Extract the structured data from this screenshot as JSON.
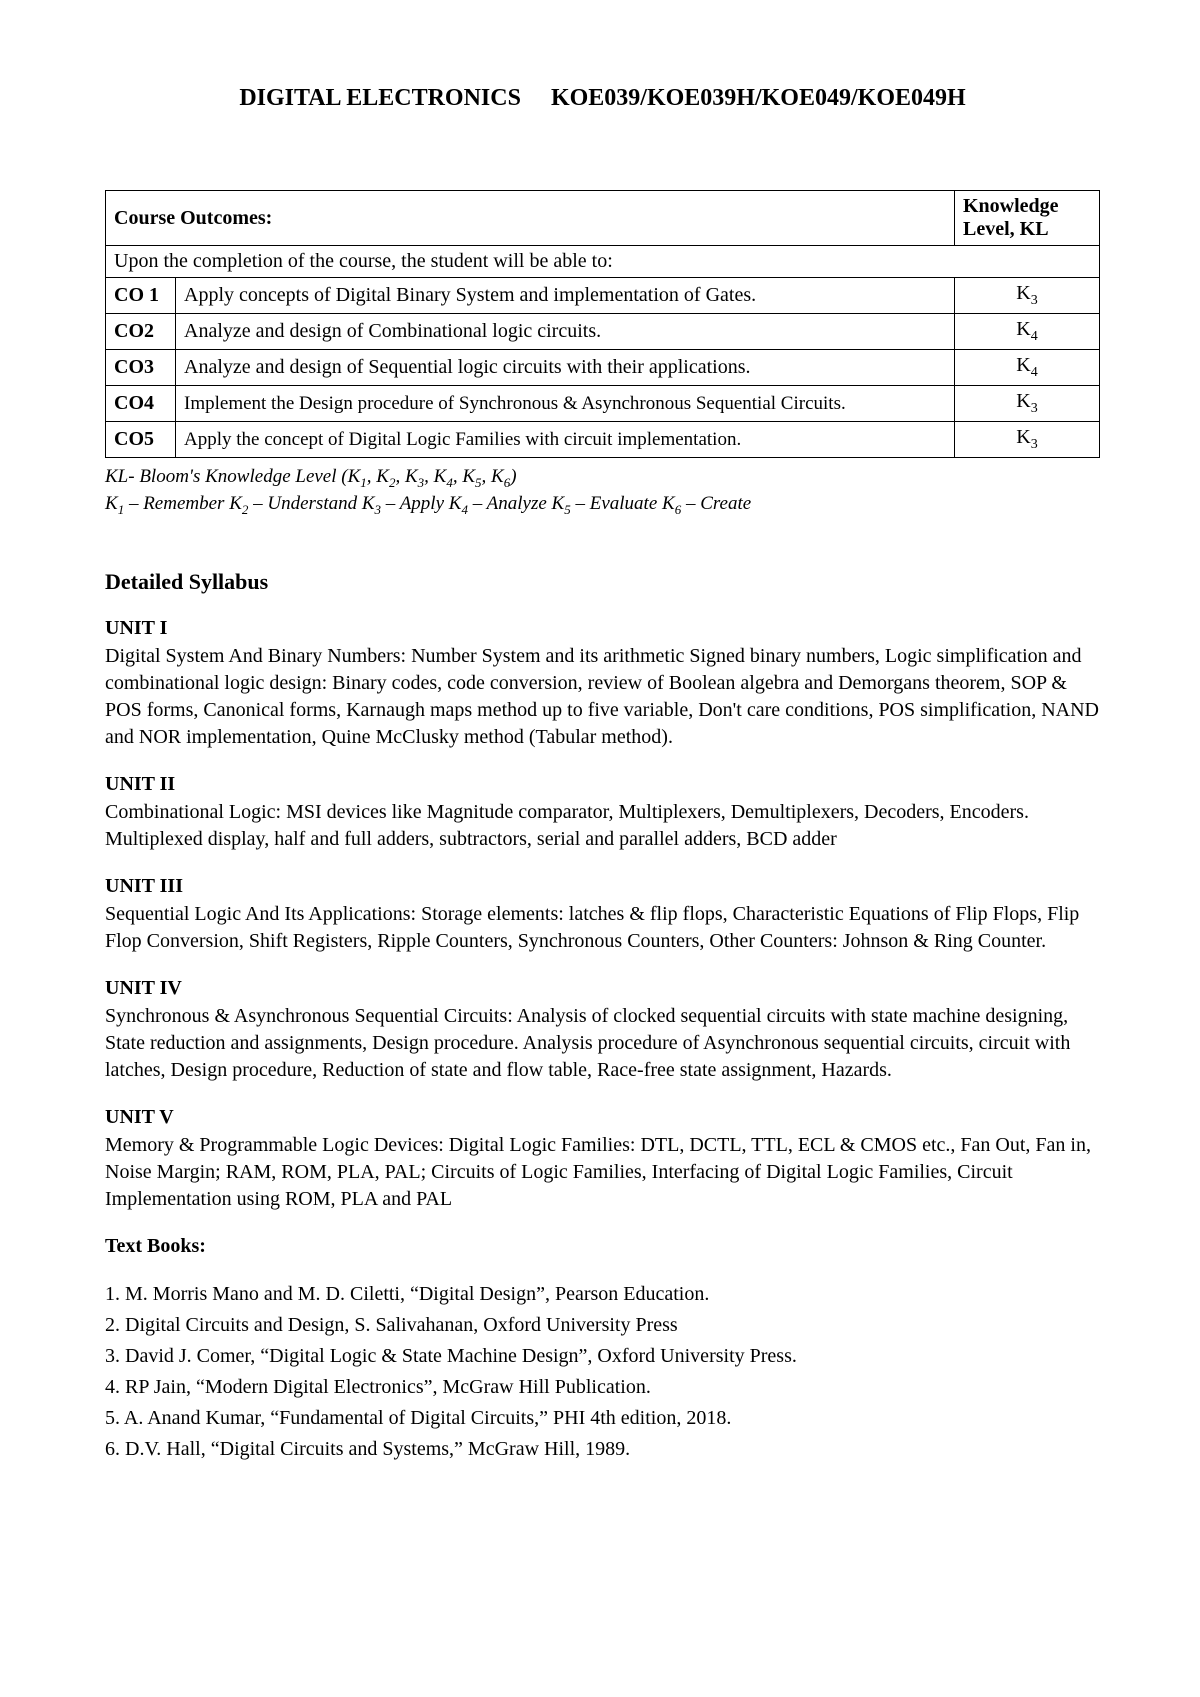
{
  "title": "DIGITAL ELECTRONICS  KOE039/KOE039H/KOE049/KOE049H",
  "table": {
    "header_left": "Course Outcomes:",
    "header_right": "Knowledge Level, KL",
    "intro": "Upon the completion of the course, the student will be able to:",
    "rows": [
      {
        "co": "CO 1",
        "desc": "Apply concepts of Digital Binary System and implementation of Gates.",
        "kl_base": "K",
        "kl_sub": "3",
        "small": false
      },
      {
        "co": "CO2",
        "desc": "Analyze and design of Combinational logic circuits.",
        "kl_base": "K",
        "kl_sub": "4",
        "small": false
      },
      {
        "co": "CO3",
        "desc": "Analyze and design of Sequential logic circuits with their applications.",
        "kl_base": "K",
        "kl_sub": "4",
        "small": false
      },
      {
        "co": "CO4",
        "desc": "Implement the Design procedure of Synchronous & Asynchronous Sequential Circuits.",
        "kl_base": "K",
        "kl_sub": "3",
        "small": true
      },
      {
        "co": "CO5",
        "desc": "Apply the concept of Digital Logic Families with circuit implementation.",
        "kl_base": "K",
        "kl_sub": "3",
        "small": true
      }
    ]
  },
  "notes": {
    "line1_prefix": "KL- Bloom's Knowledge Level (K",
    "line1_subs": [
      "1",
      "2",
      "3",
      "4",
      "5",
      "6"
    ],
    "line1_suffix": ")",
    "line2_parts": [
      {
        "base": "K",
        "sub": "1",
        "text": " – Remember  "
      },
      {
        "base": "K",
        "sub": "2",
        "text": " – Understand   "
      },
      {
        "base": "K",
        "sub": "3",
        "text": " – Apply  "
      },
      {
        "base": "K",
        "sub": "4",
        "text": " – Analyze  "
      },
      {
        "base": "K",
        "sub": "5",
        "text": " – Evaluate   "
      },
      {
        "base": "K",
        "sub": "6",
        "text": " – Create"
      }
    ]
  },
  "syllabus_heading": "Detailed Syllabus",
  "units": [
    {
      "heading": "UNIT I",
      "body": "Digital System And Binary Numbers: Number System and its arithmetic Signed binary numbers, Logic simplification and combinational logic design: Binary codes, code conversion, review of Boolean algebra and Demorgans theorem, SOP & POS forms, Canonical forms, Karnaugh maps method up to five variable, Don't care conditions, POS simplification, NAND and NOR implementation, Quine McClusky method (Tabular method)."
    },
    {
      "heading": "UNIT II",
      "body": "Combinational Logic: MSI devices like Magnitude comparator, Multiplexers, Demultiplexers, Decoders, Encoders. Multiplexed display, half and full adders, subtractors, serial and parallel adders, BCD adder"
    },
    {
      "heading": "UNIT III",
      "body": "Sequential Logic And Its Applications: Storage elements: latches & flip flops, Characteristic Equations of Flip Flops, Flip Flop Conversion, Shift Registers, Ripple Counters, Synchronous Counters, Other Counters: Johnson & Ring Counter."
    },
    {
      "heading": "UNIT IV",
      "body": "Synchronous & Asynchronous Sequential Circuits: Analysis of clocked sequential circuits with state machine designing, State reduction and assignments, Design procedure. Analysis procedure of Asynchronous sequential circuits, circuit with latches, Design procedure, Reduction of state and flow table, Race-free state assignment, Hazards."
    },
    {
      "heading": "UNIT V",
      "body": "Memory & Programmable Logic Devices: Digital Logic Families: DTL, DCTL, TTL, ECL & CMOS etc., Fan Out, Fan in, Noise Margin; RAM, ROM, PLA, PAL; Circuits of Logic Families, Interfacing of Digital Logic Families, Circuit Implementation using ROM, PLA and PAL"
    }
  ],
  "textbooks_heading": "Text Books:",
  "textbooks": [
    "1. M. Morris Mano and M. D. Ciletti, “Digital Design”, Pearson Education.",
    "2. Digital Circuits and Design, S. Salivahanan, Oxford University Press",
    "3. David J. Comer, “Digital Logic & State Machine Design”, Oxford University Press.",
    "4. RP Jain, “Modern Digital Electronics”, McGraw Hill Publication.",
    "5. A. Anand Kumar, “Fundamental of Digital Circuits,” PHI 4th edition, 2018.",
    "6. D.V. Hall, “Digital Circuits and Systems,” McGraw Hill, 1989."
  ]
}
